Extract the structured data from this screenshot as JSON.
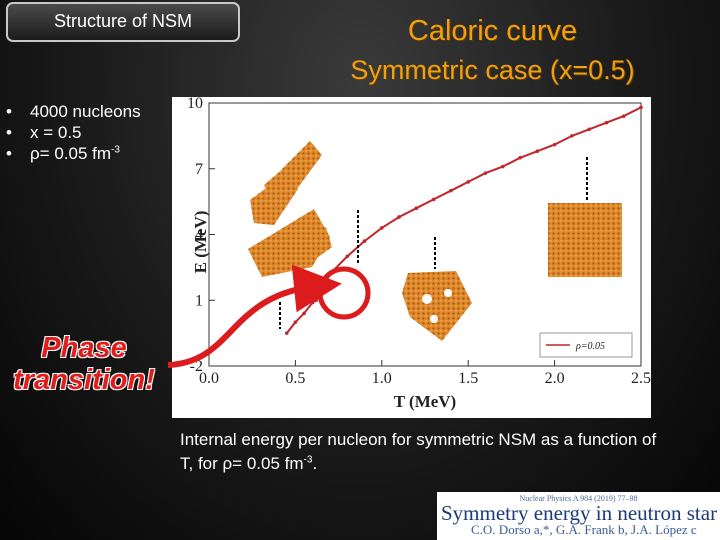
{
  "header": {
    "tab_label": "Structure of NSM",
    "title_line1": "Caloric curve",
    "title_line2": "Symmetric case (x=0.5)"
  },
  "bullets": [
    {
      "text": "4000 nucleons"
    },
    {
      "text": "x = 0.5"
    },
    {
      "text": "ρ= 0.05 fm",
      "sup": "-3"
    }
  ],
  "phase_label": [
    "Phase",
    "transition!"
  ],
  "caption": {
    "text": "Internal energy per nucleon for symmetric NSM as a function of T, for ρ= 0.05 fm",
    "sup": "-3",
    "end": "."
  },
  "reference": {
    "journal": "Nuclear Physics A 984 (2019) 77–98",
    "paper_title": "Symmetry energy in neutron star matter",
    "authors": "C.O. Dorso a,*, G.A. Frank b, J.A. López c"
  },
  "chart_data": {
    "type": "line",
    "xlabel": "T (MeV)",
    "ylabel": "E (MeV)",
    "xlim": [
      0.0,
      2.5
    ],
    "ylim": [
      -2,
      10
    ],
    "x_ticks": [
      "0.0",
      "0.5",
      "1.0",
      "1.5",
      "2.0",
      "2.5"
    ],
    "y_ticks": [
      "-2",
      "1",
      "4",
      "7",
      "10"
    ],
    "legend_position": "bottom-right",
    "series": [
      {
        "name": "ρ=0.05",
        "color": "#c0262c",
        "x": [
          0.45,
          0.5,
          0.55,
          0.6,
          0.62,
          0.65,
          0.7,
          0.8,
          0.9,
          1.0,
          1.1,
          1.2,
          1.3,
          1.4,
          1.5,
          1.6,
          1.7,
          1.8,
          1.9,
          2.0,
          2.1,
          2.2,
          2.3,
          2.4,
          2.5
        ],
        "y": [
          -0.5,
          0.0,
          0.4,
          0.9,
          1.0,
          1.4,
          2.2,
          3.0,
          3.7,
          4.3,
          4.8,
          5.2,
          5.6,
          6.0,
          6.4,
          6.8,
          7.1,
          7.5,
          7.8,
          8.1,
          8.5,
          8.8,
          9.1,
          9.4,
          9.8
        ]
      }
    ]
  },
  "accent_colors": {
    "title": "#f3a010",
    "phase": "#e21b1b",
    "structure": "#e08a2a",
    "circle": "#dc1c1c"
  }
}
